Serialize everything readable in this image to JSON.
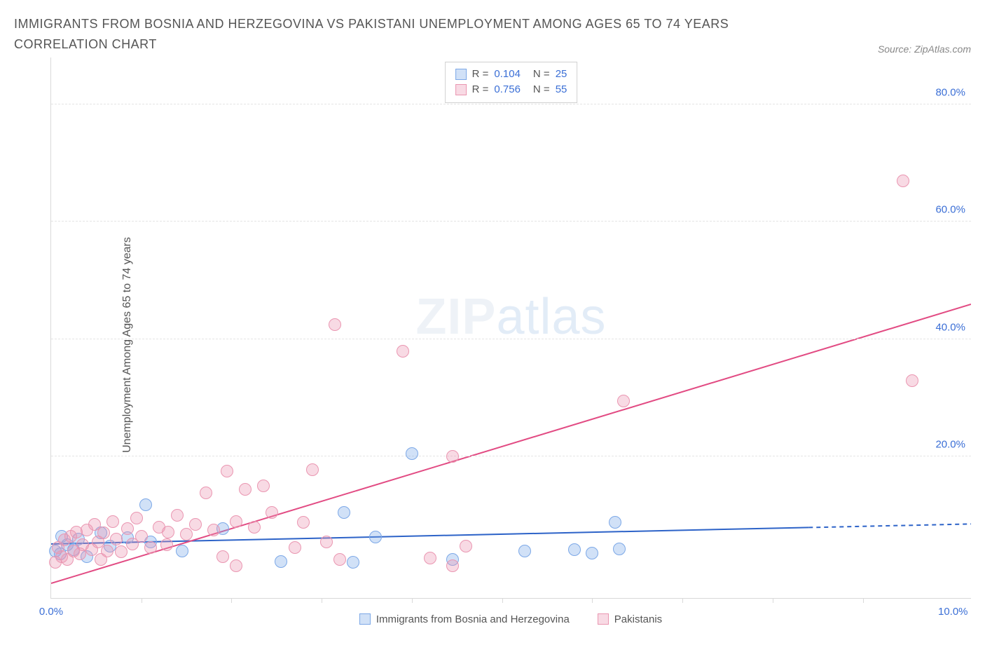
{
  "title": "IMMIGRANTS FROM BOSNIA AND HERZEGOVINA VS PAKISTANI UNEMPLOYMENT AMONG AGES 65 TO 74 YEARS CORRELATION CHART",
  "source": "Source: ZipAtlas.com",
  "watermark_a": "ZIP",
  "watermark_b": "atlas",
  "y_axis_title": "Unemployment Among Ages 65 to 74 years",
  "y_ticks": [
    {
      "v": 20,
      "label": "20.0%"
    },
    {
      "v": 40,
      "label": "40.0%"
    },
    {
      "v": 60,
      "label": "60.0%"
    },
    {
      "v": 80,
      "label": "80.0%"
    }
  ],
  "x_ticks_minor": [
    1,
    2,
    3,
    4,
    5,
    6,
    7,
    8,
    9
  ],
  "x_ticks_labeled": [
    {
      "v": 0,
      "label": "0.0%"
    },
    {
      "v": 10,
      "label": "10.0%"
    }
  ],
  "chart": {
    "type": "scatter",
    "xlim": [
      0,
      10.2
    ],
    "ylim": [
      -4,
      88
    ],
    "background_color": "#ffffff",
    "grid_color": "#e6e6e6",
    "y_tick_label_color": "#3b6fd6",
    "x_tick_label_color": "#3b6fd6",
    "marker_radius": 9,
    "marker_border_width": 1.5,
    "trend_line_width": 2
  },
  "series": [
    {
      "id": "bosnia",
      "name": "Immigrants from Bosnia and Herzegovina",
      "fill": "rgba(124,168,231,0.35)",
      "stroke": "#7ca8e7",
      "line_color": "#2d63c8",
      "R": "0.104",
      "N": "25",
      "trend": {
        "x1": 0,
        "y1": 5.2,
        "x2": 8.4,
        "y2": 8.0,
        "x2_ext": 10.2,
        "y2_ext": 8.6
      },
      "points": [
        {
          "x": 0.05,
          "y": 4.0
        },
        {
          "x": 0.1,
          "y": 3.5
        },
        {
          "x": 0.12,
          "y": 6.5
        },
        {
          "x": 0.18,
          "y": 5.0
        },
        {
          "x": 0.25,
          "y": 4.2
        },
        {
          "x": 0.3,
          "y": 6.0
        },
        {
          "x": 0.4,
          "y": 3.0
        },
        {
          "x": 0.55,
          "y": 7.0
        },
        {
          "x": 0.65,
          "y": 4.8
        },
        {
          "x": 0.85,
          "y": 6.2
        },
        {
          "x": 1.05,
          "y": 11.8
        },
        {
          "x": 1.1,
          "y": 5.5
        },
        {
          "x": 1.45,
          "y": 4.0
        },
        {
          "x": 1.9,
          "y": 7.8
        },
        {
          "x": 2.55,
          "y": 2.2
        },
        {
          "x": 3.25,
          "y": 10.5
        },
        {
          "x": 3.35,
          "y": 2.0
        },
        {
          "x": 4.0,
          "y": 20.5
        },
        {
          "x": 4.45,
          "y": 2.5
        },
        {
          "x": 5.25,
          "y": 4.0
        },
        {
          "x": 5.8,
          "y": 4.2
        },
        {
          "x": 6.25,
          "y": 8.8
        },
        {
          "x": 6.3,
          "y": 4.3
        },
        {
          "x": 6.0,
          "y": 3.6
        },
        {
          "x": 3.6,
          "y": 6.3
        }
      ]
    },
    {
      "id": "pakistani",
      "name": "Pakistanis",
      "fill": "rgba(234,150,177,0.35)",
      "stroke": "#ea96b1",
      "line_color": "#e24b83",
      "R": "0.756",
      "N": "55",
      "trend": {
        "x1": 0,
        "y1": -1.5,
        "x2": 10.2,
        "y2": 46.0
      },
      "points": [
        {
          "x": 0.05,
          "y": 2.0
        },
        {
          "x": 0.08,
          "y": 4.5
        },
        {
          "x": 0.12,
          "y": 3.0
        },
        {
          "x": 0.15,
          "y": 5.8
        },
        {
          "x": 0.18,
          "y": 2.5
        },
        {
          "x": 0.22,
          "y": 6.5
        },
        {
          "x": 0.25,
          "y": 4.0
        },
        {
          "x": 0.28,
          "y": 7.2
        },
        {
          "x": 0.32,
          "y": 3.5
        },
        {
          "x": 0.35,
          "y": 5.0
        },
        {
          "x": 0.4,
          "y": 7.5
        },
        {
          "x": 0.45,
          "y": 4.2
        },
        {
          "x": 0.48,
          "y": 8.5
        },
        {
          "x": 0.52,
          "y": 5.5
        },
        {
          "x": 0.58,
          "y": 7.0
        },
        {
          "x": 0.62,
          "y": 4.0
        },
        {
          "x": 0.68,
          "y": 9.0
        },
        {
          "x": 0.72,
          "y": 6.0
        },
        {
          "x": 0.78,
          "y": 3.8
        },
        {
          "x": 0.85,
          "y": 7.8
        },
        {
          "x": 0.9,
          "y": 5.2
        },
        {
          "x": 0.95,
          "y": 9.5
        },
        {
          "x": 1.0,
          "y": 6.5
        },
        {
          "x": 1.1,
          "y": 4.5
        },
        {
          "x": 1.2,
          "y": 8.0
        },
        {
          "x": 1.3,
          "y": 7.2
        },
        {
          "x": 1.4,
          "y": 10.0
        },
        {
          "x": 1.5,
          "y": 6.8
        },
        {
          "x": 1.6,
          "y": 8.5
        },
        {
          "x": 1.72,
          "y": 13.8
        },
        {
          "x": 1.8,
          "y": 7.5
        },
        {
          "x": 1.95,
          "y": 17.5
        },
        {
          "x": 2.05,
          "y": 9.0
        },
        {
          "x": 2.15,
          "y": 14.5
        },
        {
          "x": 2.25,
          "y": 8.0
        },
        {
          "x": 2.35,
          "y": 15.0
        },
        {
          "x": 2.45,
          "y": 10.5
        },
        {
          "x": 1.9,
          "y": 3.0
        },
        {
          "x": 2.05,
          "y": 1.5
        },
        {
          "x": 2.7,
          "y": 4.5
        },
        {
          "x": 2.8,
          "y": 8.8
        },
        {
          "x": 2.9,
          "y": 17.8
        },
        {
          "x": 3.05,
          "y": 5.5
        },
        {
          "x": 3.2,
          "y": 2.5
        },
        {
          "x": 3.15,
          "y": 42.5
        },
        {
          "x": 3.9,
          "y": 38.0
        },
        {
          "x": 4.2,
          "y": 2.8
        },
        {
          "x": 4.45,
          "y": 20.0
        },
        {
          "x": 4.6,
          "y": 4.8
        },
        {
          "x": 4.45,
          "y": 1.5
        },
        {
          "x": 6.35,
          "y": 29.5
        },
        {
          "x": 9.45,
          "y": 67.0
        },
        {
          "x": 9.55,
          "y": 33.0
        },
        {
          "x": 1.28,
          "y": 5.0
        },
        {
          "x": 0.55,
          "y": 2.5
        }
      ]
    }
  ],
  "stats_box": {
    "labels": {
      "R": "R =",
      "N": "N ="
    }
  },
  "legend": {
    "items": [
      {
        "series": "bosnia"
      },
      {
        "series": "pakistani"
      }
    ]
  }
}
